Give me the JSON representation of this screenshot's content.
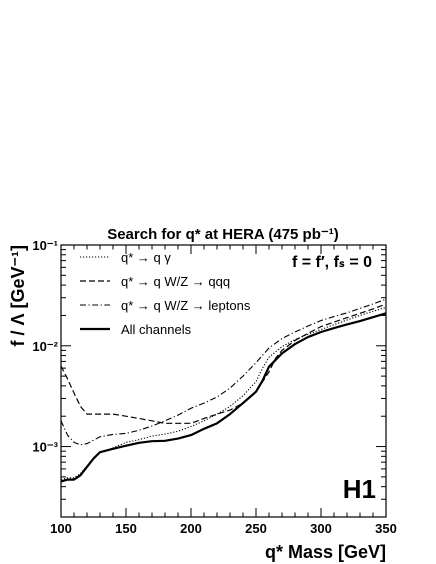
{
  "chart_data": {
    "type": "line",
    "title": "Search for q* at HERA (475 pb⁻¹)",
    "xlabel": "q* Mass [GeV]",
    "ylabel": "f / Λ [GeV⁻¹]",
    "xlim": [
      100,
      350
    ],
    "ylim": [
      0.0002,
      0.1
    ],
    "yscale": "log",
    "x_ticks": [
      100,
      150,
      200,
      250,
      300,
      350
    ],
    "y_ticks": [
      {
        "value": 0.1,
        "label": "10⁻¹"
      },
      {
        "value": 0.01,
        "label": "10⁻²"
      },
      {
        "value": 0.001,
        "label": "10⁻³"
      }
    ],
    "annotation": "f = f′, fₛ = 0",
    "experiment": "H1",
    "legend_position": "top-left",
    "series": [
      {
        "name": "q* → q γ",
        "style": "dotted",
        "points": [
          [
            100,
            0.00047
          ],
          [
            105,
            0.00049
          ],
          [
            110,
            0.00049
          ],
          [
            115,
            0.00054
          ],
          [
            120,
            0.00064
          ],
          [
            125,
            0.00077
          ],
          [
            130,
            0.00087
          ],
          [
            140,
            0.00097
          ],
          [
            150,
            0.0011
          ],
          [
            160,
            0.00117
          ],
          [
            170,
            0.00127
          ],
          [
            180,
            0.00133
          ],
          [
            190,
            0.00142
          ],
          [
            200,
            0.00158
          ],
          [
            210,
            0.0018
          ],
          [
            220,
            0.0021
          ],
          [
            230,
            0.0025
          ],
          [
            240,
            0.0032
          ],
          [
            250,
            0.0044
          ],
          [
            255,
            0.006
          ],
          [
            260,
            0.0077
          ],
          [
            270,
            0.0098
          ],
          [
            280,
            0.0115
          ],
          [
            290,
            0.013
          ],
          [
            300,
            0.0145
          ],
          [
            310,
            0.0162
          ],
          [
            320,
            0.018
          ],
          [
            330,
            0.02
          ],
          [
            340,
            0.022
          ],
          [
            350,
            0.024
          ]
        ]
      },
      {
        "name": "q* → q W/Z → qqq",
        "style": "dashed",
        "points": [
          [
            100,
            0.0063
          ],
          [
            105,
            0.0047
          ],
          [
            110,
            0.0034
          ],
          [
            115,
            0.0025
          ],
          [
            120,
            0.0021
          ],
          [
            130,
            0.0021
          ],
          [
            140,
            0.0021
          ],
          [
            150,
            0.002
          ],
          [
            160,
            0.0019
          ],
          [
            170,
            0.0018
          ],
          [
            180,
            0.0017
          ],
          [
            190,
            0.0017
          ],
          [
            200,
            0.0017
          ],
          [
            210,
            0.0019
          ],
          [
            220,
            0.0021
          ],
          [
            230,
            0.0023
          ],
          [
            240,
            0.0027
          ],
          [
            250,
            0.0035
          ],
          [
            260,
            0.0055
          ],
          [
            265,
            0.0075
          ],
          [
            270,
            0.009
          ],
          [
            280,
            0.0113
          ],
          [
            290,
            0.0133
          ],
          [
            300,
            0.0155
          ],
          [
            310,
            0.0172
          ],
          [
            320,
            0.019
          ],
          [
            330,
            0.021
          ],
          [
            340,
            0.0232
          ],
          [
            350,
            0.026
          ]
        ]
      },
      {
        "name": "q* → q W/Z → leptons",
        "style": "dashdot",
        "points": [
          [
            100,
            0.0018
          ],
          [
            105,
            0.0013
          ],
          [
            110,
            0.0011
          ],
          [
            115,
            0.00104
          ],
          [
            120,
            0.00107
          ],
          [
            130,
            0.00125
          ],
          [
            140,
            0.00132
          ],
          [
            150,
            0.00135
          ],
          [
            160,
            0.00145
          ],
          [
            170,
            0.0016
          ],
          [
            180,
            0.0018
          ],
          [
            190,
            0.00205
          ],
          [
            200,
            0.0024
          ],
          [
            210,
            0.0027
          ],
          [
            220,
            0.0031
          ],
          [
            230,
            0.0038
          ],
          [
            240,
            0.005
          ],
          [
            250,
            0.0068
          ],
          [
            260,
            0.0095
          ],
          [
            270,
            0.0118
          ],
          [
            280,
            0.0137
          ],
          [
            290,
            0.0157
          ],
          [
            300,
            0.0178
          ],
          [
            310,
            0.0195
          ],
          [
            320,
            0.0212
          ],
          [
            330,
            0.0235
          ],
          [
            340,
            0.026
          ],
          [
            350,
            0.029
          ]
        ]
      },
      {
        "name": "All channels",
        "style": "solid",
        "points": [
          [
            100,
            0.00045
          ],
          [
            105,
            0.00047
          ],
          [
            110,
            0.00047
          ],
          [
            115,
            0.00052
          ],
          [
            120,
            0.00063
          ],
          [
            125,
            0.00076
          ],
          [
            130,
            0.00088
          ],
          [
            140,
            0.00095
          ],
          [
            150,
            0.00102
          ],
          [
            160,
            0.00109
          ],
          [
            170,
            0.00113
          ],
          [
            180,
            0.00114
          ],
          [
            190,
            0.0012
          ],
          [
            200,
            0.0013
          ],
          [
            210,
            0.0015
          ],
          [
            220,
            0.0017
          ],
          [
            230,
            0.0021
          ],
          [
            240,
            0.0027
          ],
          [
            250,
            0.0035
          ],
          [
            255,
            0.0045
          ],
          [
            260,
            0.0062
          ],
          [
            270,
            0.0084
          ],
          [
            280,
            0.0104
          ],
          [
            290,
            0.0122
          ],
          [
            300,
            0.0137
          ],
          [
            310,
            0.015
          ],
          [
            320,
            0.0163
          ],
          [
            330,
            0.0176
          ],
          [
            340,
            0.0192
          ],
          [
            350,
            0.021
          ]
        ]
      }
    ]
  }
}
